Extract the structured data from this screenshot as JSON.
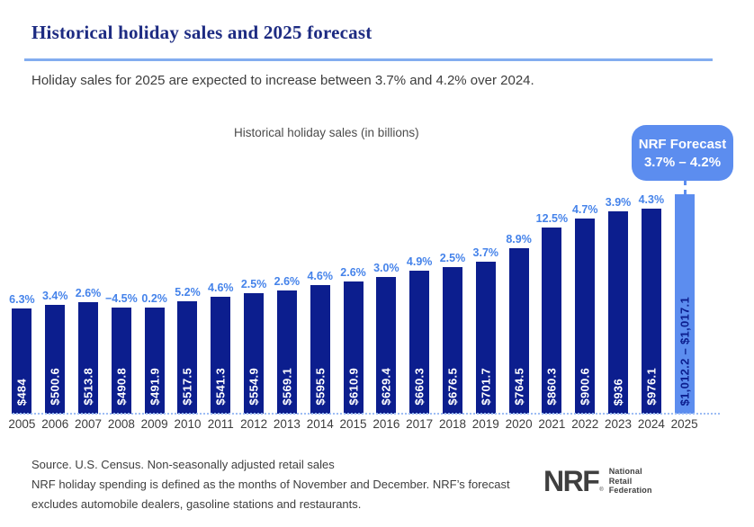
{
  "page": {
    "title": "Historical holiday sales and 2025 forecast",
    "subtitle": "Holiday sales for 2025 are expected to increase between 3.7% and 4.2% over 2024."
  },
  "chart_data": {
    "type": "bar",
    "title": "Historical holiday sales (in billions)",
    "unit": "USD billions",
    "ylim": [
      0,
      1017.1
    ],
    "grid": false,
    "legend": false,
    "categories": [
      "2005",
      "2006",
      "2007",
      "2008",
      "2009",
      "2010",
      "2011",
      "2012",
      "2013",
      "2014",
      "2015",
      "2016",
      "2017",
      "2018",
      "2019",
      "2020",
      "2021",
      "2022",
      "2023",
      "2024",
      "2025"
    ],
    "series": [
      {
        "name": "Holiday sales (in billions)",
        "values": [
          484,
          500.6,
          513.8,
          490.8,
          491.9,
          517.5,
          541.3,
          554.9,
          569.1,
          595.5,
          610.9,
          629.4,
          660.3,
          676.5,
          701.7,
          764.5,
          860.3,
          900.6,
          936,
          976.1,
          1014.65
        ]
      }
    ],
    "bars": [
      {
        "year": "2005",
        "value": 484,
        "label": "$484",
        "pct": "6.3%",
        "forecast": false
      },
      {
        "year": "2006",
        "value": 500.6,
        "label": "$500.6",
        "pct": "3.4%",
        "forecast": false
      },
      {
        "year": "2007",
        "value": 513.8,
        "label": "$513.8",
        "pct": "2.6%",
        "forecast": false
      },
      {
        "year": "2008",
        "value": 490.8,
        "label": "$490.8",
        "pct": "−4.5%",
        "forecast": false
      },
      {
        "year": "2009",
        "value": 491.9,
        "label": "$491.9",
        "pct": "0.2%",
        "forecast": false
      },
      {
        "year": "2010",
        "value": 517.5,
        "label": "$517.5",
        "pct": "5.2%",
        "forecast": false
      },
      {
        "year": "2011",
        "value": 541.3,
        "label": "$541.3",
        "pct": "4.6%",
        "forecast": false
      },
      {
        "year": "2012",
        "value": 554.9,
        "label": "$554.9",
        "pct": "2.5%",
        "forecast": false
      },
      {
        "year": "2013",
        "value": 569.1,
        "label": "$569.1",
        "pct": "2.6%",
        "forecast": false
      },
      {
        "year": "2014",
        "value": 595.5,
        "label": "$595.5",
        "pct": "4.6%",
        "forecast": false
      },
      {
        "year": "2015",
        "value": 610.9,
        "label": "$610.9",
        "pct": "2.6%",
        "forecast": false
      },
      {
        "year": "2016",
        "value": 629.4,
        "label": "$629.4",
        "pct": "3.0%",
        "forecast": false
      },
      {
        "year": "2017",
        "value": 660.3,
        "label": "$660.3",
        "pct": "4.9%",
        "forecast": false
      },
      {
        "year": "2018",
        "value": 676.5,
        "label": "$676.5",
        "pct": "2.5%",
        "forecast": false
      },
      {
        "year": "2019",
        "value": 701.7,
        "label": "$701.7",
        "pct": "3.7%",
        "forecast": false
      },
      {
        "year": "2020",
        "value": 764.5,
        "label": "$764.5",
        "pct": "8.9%",
        "forecast": false
      },
      {
        "year": "2021",
        "value": 860.3,
        "label": "$860.3",
        "pct": "12.5%",
        "forecast": false
      },
      {
        "year": "2022",
        "value": 900.6,
        "label": "$900.6",
        "pct": "4.7%",
        "forecast": false
      },
      {
        "year": "2023",
        "value": 936,
        "label": "$936",
        "pct": "3.9%",
        "forecast": false
      },
      {
        "year": "2024",
        "value": 976.1,
        "label": "$976.1",
        "pct": "4.3%",
        "forecast": false
      },
      {
        "year": "2025",
        "value": 1014.65,
        "forecast_range": [
          1012.2,
          1017.1
        ],
        "label": "$1,012.2 – $1,017.1",
        "pct": null,
        "forecast": true
      }
    ],
    "forecast_callout": {
      "line1": "NRF Forecast",
      "line2": "3.7% – 4.2%"
    },
    "colors": {
      "bar": "#0c1e8e",
      "forecast_bar": "#5c8def",
      "pct_label": "#4583ea",
      "title_navy": "#1d2b82",
      "divider": "#83adf0",
      "bar_value_text": "#ffffff",
      "forecast_value_text": "#0c1e8e"
    }
  },
  "footer": {
    "lines": [
      "Source. U.S. Census. Non-seasonally adjusted retail sales",
      "NRF holiday spending is defined as the months of November and December. NRF’s forecast",
      "excludes automobile dealers, gasoline stations and restaurants."
    ]
  },
  "logo": {
    "abbr": "NRF",
    "reg_mark": "®",
    "org_lines": [
      "National",
      "Retail",
      "Federation"
    ]
  }
}
